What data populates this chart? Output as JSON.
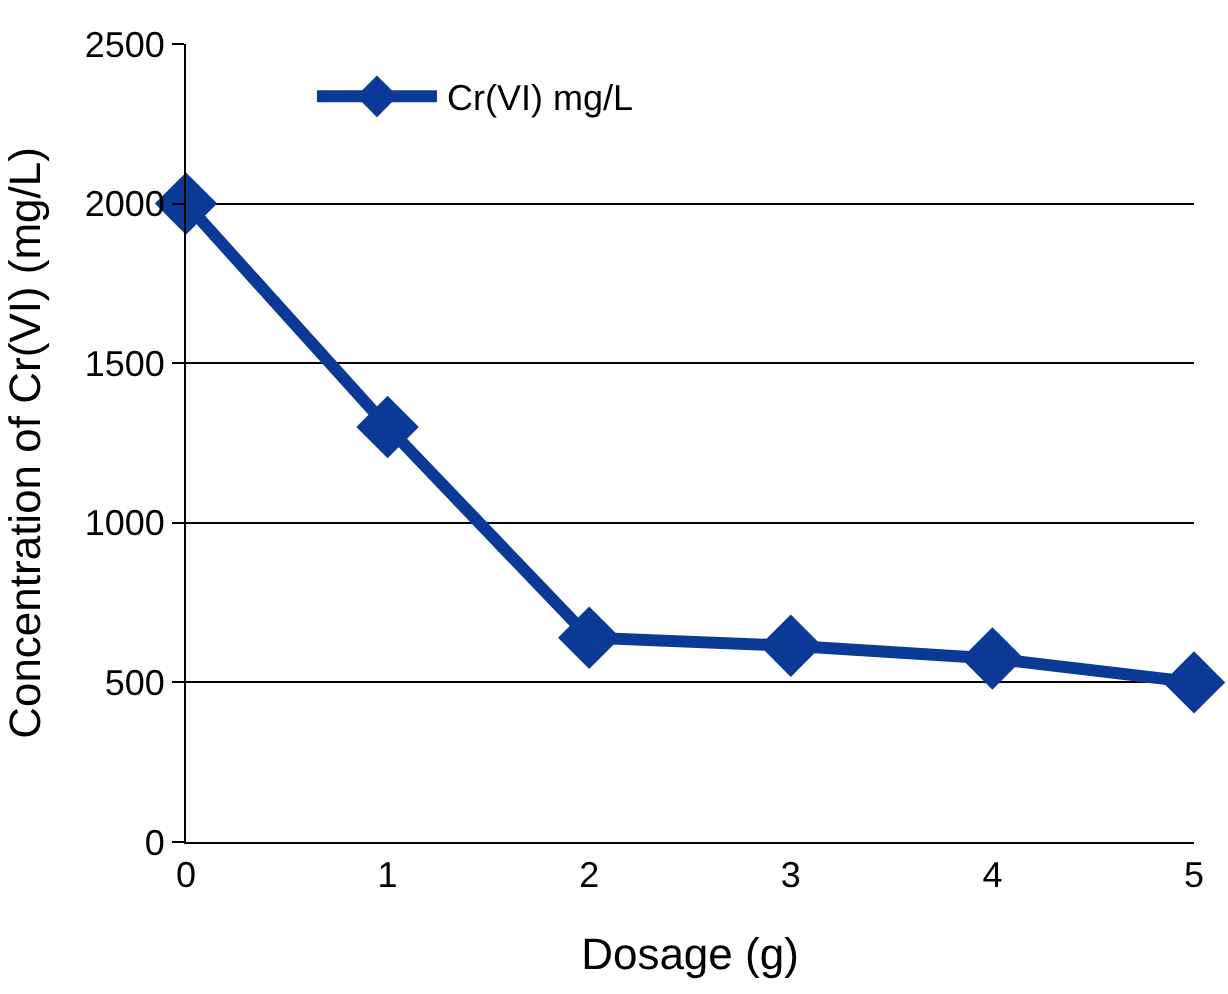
{
  "chart_data": {
    "type": "line",
    "xlabel": "Dosage (g)",
    "ylabel": "Concentration of Cr(VI) (mg/L)",
    "x": [
      0,
      1,
      2,
      3,
      4,
      5
    ],
    "series": [
      {
        "name": "Cr(VI) mg/L",
        "color": "#0b3a96",
        "values": [
          2000,
          1300,
          640,
          615,
          575,
          500
        ]
      }
    ],
    "xlim": [
      0,
      5
    ],
    "xticks": [
      0,
      1,
      2,
      3,
      4,
      5
    ],
    "ylim": [
      0,
      2500
    ],
    "yticks": [
      0,
      500,
      1000,
      1500,
      2000,
      2500
    ],
    "grid": "y",
    "legend": "top left",
    "marker": "diamond",
    "line_style": "solid"
  }
}
